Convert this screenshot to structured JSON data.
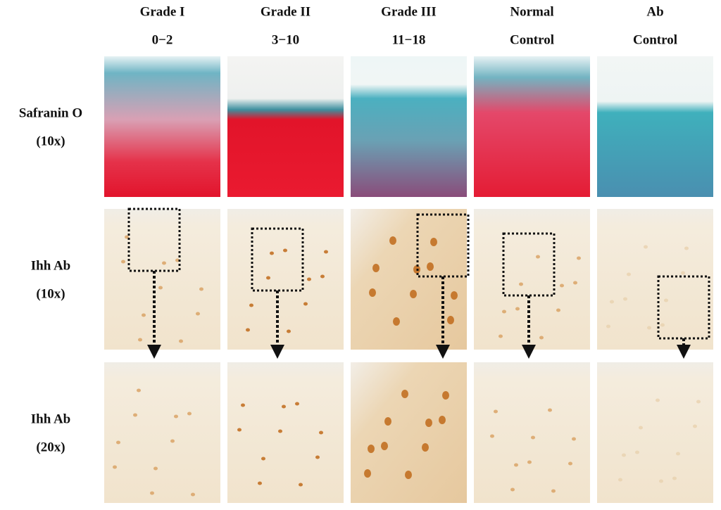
{
  "columns": [
    {
      "line1": "Grade I",
      "line2": "0−2"
    },
    {
      "line1": "Grade II",
      "line2": "3−10"
    },
    {
      "line1": "Grade III",
      "line2": "11−18"
    },
    {
      "line1": "Normal",
      "line2": "Control"
    },
    {
      "line1": "Ab",
      "line2": "Control"
    }
  ],
  "rows": [
    {
      "line1": "Safranin O",
      "line2": "(10x)"
    },
    {
      "line1": "Ihh Ab",
      "line2": "(10x)"
    },
    {
      "line1": "Ihh Ab",
      "line2": "(20x)"
    }
  ]
}
